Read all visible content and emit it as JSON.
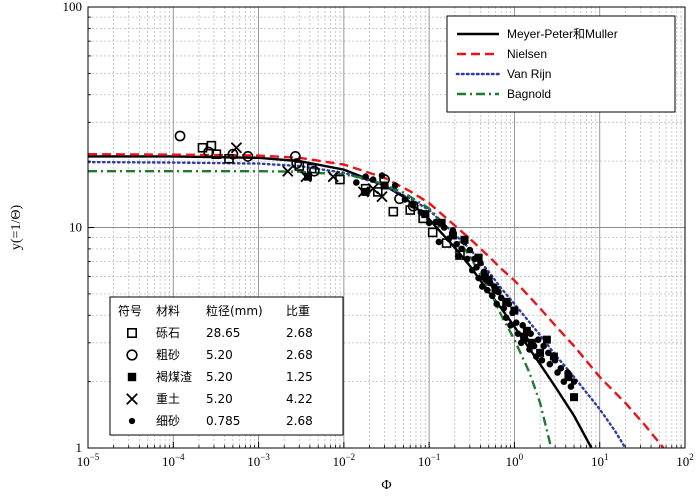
{
  "chart_data": {
    "type": "scatter",
    "xscale": "log",
    "yscale": "log",
    "xlim": [
      1e-05,
      100
    ],
    "ylim": [
      1,
      100
    ],
    "xlabel": "Φ",
    "ylabel": "y(=1/Θ)",
    "x_ticks": [
      {
        "value": 1e-05,
        "base": "10",
        "exp": "−5"
      },
      {
        "value": 0.0001,
        "base": "10",
        "exp": "−4"
      },
      {
        "value": 0.001,
        "base": "10",
        "exp": "−3"
      },
      {
        "value": 0.01,
        "base": "10",
        "exp": "−2"
      },
      {
        "value": 0.1,
        "base": "10",
        "exp": "−1"
      },
      {
        "value": 1,
        "base": "10",
        "exp": "0"
      },
      {
        "value": 10,
        "base": "10",
        "exp": "1"
      },
      {
        "value": 100,
        "base": "10",
        "exp": "2"
      }
    ],
    "y_ticks": [
      {
        "value": 1,
        "label": "1"
      },
      {
        "value": 10,
        "label": "10"
      },
      {
        "value": 100,
        "label": "100"
      }
    ],
    "grid": true,
    "curves": [
      {
        "name": "Meyer-Peter和Muller",
        "color": "#000000",
        "style": "solid",
        "points": [
          [
            1e-05,
            21
          ],
          [
            0.0001,
            21
          ],
          [
            0.001,
            20.7
          ],
          [
            0.003,
            20
          ],
          [
            0.01,
            18.3
          ],
          [
            0.03,
            15.5
          ],
          [
            0.05,
            13.8
          ],
          [
            0.1,
            10.9
          ],
          [
            0.2,
            8.1
          ],
          [
            0.3,
            6.7
          ],
          [
            0.5,
            5.1
          ],
          [
            0.7,
            4.3
          ],
          [
            1,
            3.55
          ],
          [
            2,
            2.4
          ],
          [
            3,
            1.9
          ],
          [
            5,
            1.4
          ],
          [
            8,
            1.0
          ]
        ]
      },
      {
        "name": "Nielsen",
        "color": "#e8141b",
        "style": "dash",
        "points": [
          [
            1e-05,
            21.5
          ],
          [
            0.0001,
            21.4
          ],
          [
            0.001,
            21.2
          ],
          [
            0.003,
            20.7
          ],
          [
            0.01,
            19.3
          ],
          [
            0.03,
            16.8
          ],
          [
            0.06,
            14.6
          ],
          [
            0.1,
            12.9
          ],
          [
            0.2,
            10.2
          ],
          [
            0.3,
            8.9
          ],
          [
            0.5,
            7.4
          ],
          [
            0.7,
            6.5
          ],
          [
            1,
            5.75
          ],
          [
            2,
            4.3
          ],
          [
            3,
            3.6
          ],
          [
            5,
            2.9
          ],
          [
            10,
            2.1
          ],
          [
            20,
            1.6
          ],
          [
            35,
            1.25
          ],
          [
            56,
            1.0
          ]
        ]
      },
      {
        "name": "Van Rijn",
        "color": "#2d3e9e",
        "style": "dot",
        "points": [
          [
            1e-05,
            19.8
          ],
          [
            0.0001,
            19.7
          ],
          [
            0.001,
            19.5
          ],
          [
            0.003,
            19.0
          ],
          [
            0.01,
            17.7
          ],
          [
            0.03,
            15.5
          ],
          [
            0.06,
            13.5
          ],
          [
            0.1,
            12.0
          ],
          [
            0.2,
            9.3
          ],
          [
            0.3,
            8.0
          ],
          [
            0.5,
            6.3
          ],
          [
            0.7,
            5.3
          ],
          [
            1,
            4.5
          ],
          [
            2,
            3.25
          ],
          [
            3,
            2.65
          ],
          [
            5,
            2.1
          ],
          [
            10,
            1.5
          ],
          [
            15,
            1.2
          ],
          [
            20,
            1.0
          ]
        ]
      },
      {
        "name": "Bagnold",
        "color": "#1f7a2e",
        "style": "dashdot",
        "points": [
          [
            1e-05,
            18
          ],
          [
            0.0001,
            18
          ],
          [
            0.001,
            18
          ],
          [
            0.003,
            17.9
          ],
          [
            0.01,
            17.4
          ],
          [
            0.02,
            16.6
          ],
          [
            0.05,
            14.4
          ],
          [
            0.1,
            12.2
          ],
          [
            0.2,
            9.2
          ],
          [
            0.3,
            7.4
          ],
          [
            0.5,
            5.3
          ],
          [
            0.7,
            4.0
          ],
          [
            1,
            3.1
          ],
          [
            1.5,
            2.2
          ],
          [
            2,
            1.6
          ],
          [
            2.7,
            1.0
          ]
        ]
      }
    ],
    "series": [
      {
        "name": "砾石",
        "marker": "open-square",
        "points": [
          [
            0.00022,
            23
          ],
          [
            0.00028,
            23.5
          ],
          [
            0.00032,
            21.5
          ],
          [
            0.00045,
            20.5
          ],
          [
            0.003,
            19
          ],
          [
            0.0042,
            18.5
          ],
          [
            0.009,
            16.5
          ],
          [
            0.018,
            15
          ],
          [
            0.025,
            14.5
          ],
          [
            0.038,
            11.8
          ],
          [
            0.06,
            12
          ],
          [
            0.085,
            11
          ],
          [
            0.11,
            9.5
          ],
          [
            0.16,
            8.5
          ],
          [
            0.23,
            7.5
          ]
        ]
      },
      {
        "name": "粗砂",
        "marker": "open-circle",
        "points": [
          [
            0.00012,
            26
          ],
          [
            0.00026,
            22
          ],
          [
            0.0005,
            21.5
          ],
          [
            0.00075,
            21
          ],
          [
            0.0027,
            21
          ],
          [
            0.0028,
            19.5
          ],
          [
            0.0045,
            18
          ],
          [
            0.03,
            16.5
          ],
          [
            0.045,
            13.5
          ],
          [
            0.065,
            12.5
          ]
        ]
      },
      {
        "name": "褐煤渣",
        "marker": "filled-square",
        "points": [
          [
            0.0038,
            17
          ],
          [
            0.018,
            14.5
          ],
          [
            0.03,
            15.5
          ],
          [
            0.09,
            11.5
          ],
          [
            0.14,
            10.5
          ],
          [
            0.19,
            9.2
          ],
          [
            0.26,
            8.8
          ],
          [
            0.38,
            7.3
          ],
          [
            0.45,
            6
          ],
          [
            0.5,
            5.8
          ],
          [
            0.6,
            5.2
          ],
          [
            0.8,
            4.6
          ],
          [
            1.0,
            4.2
          ],
          [
            1.3,
            3.2
          ],
          [
            1.4,
            3.4
          ],
          [
            1.6,
            3.0
          ],
          [
            2.0,
            2.7
          ],
          [
            2.4,
            3.1
          ],
          [
            2.9,
            2.6
          ],
          [
            4.3,
            2.1
          ],
          [
            5.0,
            1.7
          ]
        ]
      },
      {
        "name": "重土",
        "marker": "cross",
        "points": [
          [
            0.00055,
            23
          ],
          [
            0.0022,
            18
          ],
          [
            0.0036,
            17
          ],
          [
            0.0075,
            17
          ],
          [
            0.017,
            14.5
          ],
          [
            0.022,
            15
          ],
          [
            0.028,
            13.8
          ]
        ]
      },
      {
        "name": "细砂",
        "marker": "filled-dot",
        "points": [
          [
            0.014,
            16
          ],
          [
            0.018,
            17
          ],
          [
            0.022,
            16.5
          ],
          [
            0.028,
            17.2
          ],
          [
            0.04,
            15.5
          ],
          [
            0.052,
            13.4
          ],
          [
            0.065,
            12.6
          ],
          [
            0.08,
            11.7
          ],
          [
            0.1,
            10.5
          ],
          [
            0.12,
            10.6
          ],
          [
            0.13,
            8.6
          ],
          [
            0.15,
            10
          ],
          [
            0.17,
            8.9
          ],
          [
            0.19,
            9.7
          ],
          [
            0.21,
            8.4
          ],
          [
            0.22,
            7.4
          ],
          [
            0.24,
            8
          ],
          [
            0.26,
            8.6
          ],
          [
            0.28,
            7.2
          ],
          [
            0.3,
            7.9
          ],
          [
            0.32,
            6.4
          ],
          [
            0.34,
            7.2
          ],
          [
            0.36,
            6.6
          ],
          [
            0.38,
            5.9
          ],
          [
            0.4,
            6.9
          ],
          [
            0.42,
            5.4
          ],
          [
            0.44,
            6.3
          ],
          [
            0.46,
            5.8
          ],
          [
            0.48,
            5.2
          ],
          [
            0.52,
            5.6
          ],
          [
            0.55,
            4.9
          ],
          [
            0.58,
            5.4
          ],
          [
            0.62,
            4.5
          ],
          [
            0.65,
            5.1
          ],
          [
            0.7,
            4.8
          ],
          [
            0.75,
            4.3
          ],
          [
            0.8,
            3.9
          ],
          [
            0.86,
            4.5
          ],
          [
            0.9,
            3.6
          ],
          [
            0.95,
            4.1
          ],
          [
            1.05,
            3.7
          ],
          [
            1.1,
            3.3
          ],
          [
            1.2,
            3.0
          ],
          [
            1.25,
            3.6
          ],
          [
            1.35,
            3.1
          ],
          [
            1.5,
            2.8
          ],
          [
            1.55,
            3.3
          ],
          [
            1.7,
            2.9
          ],
          [
            1.8,
            2.6
          ],
          [
            1.9,
            3.1
          ],
          [
            2.1,
            2.5
          ],
          [
            2.2,
            2.9
          ],
          [
            2.5,
            2.7
          ],
          [
            2.6,
            2.4
          ],
          [
            3.0,
            2.5
          ],
          [
            3.2,
            2.2
          ],
          [
            3.5,
            2.3
          ],
          [
            3.8,
            2.0
          ],
          [
            4.2,
            2.2
          ],
          [
            4.6,
            1.9
          ],
          [
            5.0,
            2.0
          ]
        ]
      }
    ],
    "legend": {
      "placement": "top-right",
      "entries": [
        {
          "label": "Meyer-Peter和Muller",
          "color": "#000000",
          "style": "solid"
        },
        {
          "label": "Nielsen",
          "color": "#e8141b",
          "style": "dash"
        },
        {
          "label": "Van Rijn",
          "color": "#2d3e9e",
          "style": "dot"
        },
        {
          "label": "Bagnold",
          "color": "#1f7a2e",
          "style": "dashdot"
        }
      ]
    },
    "materials_table": {
      "placement": "bottom-left",
      "headers": [
        "符号",
        "材料",
        "粒径(mm)",
        "比重"
      ],
      "rows": [
        {
          "marker": "open-square",
          "material": "砾石",
          "size": "28.65",
          "gravity": "2.68"
        },
        {
          "marker": "open-circle",
          "material": "粗砂",
          "size": "5.20",
          "gravity": "2.68"
        },
        {
          "marker": "filled-square",
          "material": "褐煤渣",
          "size": "5.20",
          "gravity": "1.25"
        },
        {
          "marker": "cross",
          "material": "重土",
          "size": "5.20",
          "gravity": "4.22"
        },
        {
          "marker": "filled-dot",
          "material": "细砂",
          "size": "0.785",
          "gravity": "2.68"
        }
      ]
    }
  }
}
